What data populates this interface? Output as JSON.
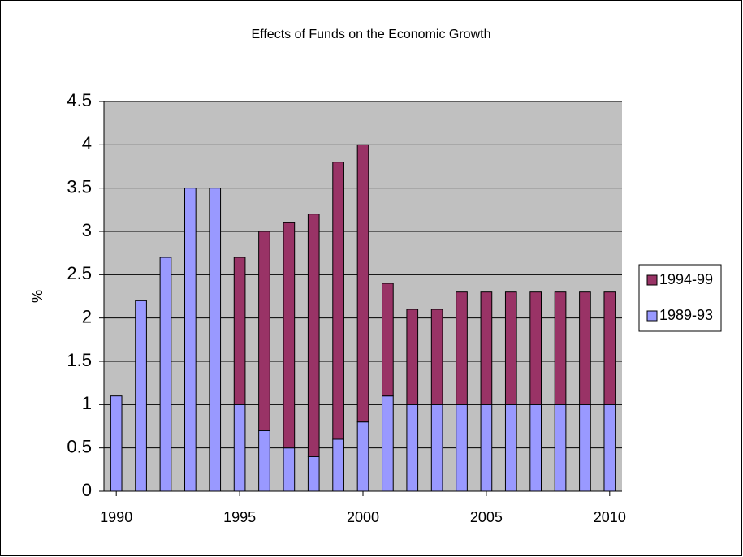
{
  "chart_data": {
    "type": "stacked_bar",
    "title": "Effects of Funds on the Economic Growth",
    "y_label": "%",
    "x": [
      1990,
      1991,
      1992,
      1993,
      1994,
      1995,
      1996,
      1997,
      1998,
      1999,
      2000,
      2001,
      2002,
      2003,
      2004,
      2005,
      2006,
      2007,
      2008,
      2009,
      2010
    ],
    "xlim": [
      1989.5,
      2010.5
    ],
    "xticks": [
      1990,
      1995,
      2000,
      2005,
      2010
    ],
    "ylim": [
      0,
      4.5
    ],
    "yticks": [
      0,
      0.5,
      1,
      1.5,
      2,
      2.5,
      3,
      3.5,
      4,
      4.5
    ],
    "grid": true,
    "legend": "right",
    "series": [
      {
        "name": "1989-93",
        "color": "#9999ff",
        "values": [
          1.1,
          2.2,
          2.7,
          3.5,
          3.5,
          1.0,
          0.7,
          0.5,
          0.4,
          0.6,
          0.8,
          1.1,
          1.0,
          1.0,
          1.0,
          1.0,
          1.0,
          1.0,
          1.0,
          1.0,
          1.0
        ]
      },
      {
        "name": "1994-99",
        "color": "#993366",
        "values": [
          null,
          null,
          null,
          null,
          null,
          1.7,
          2.3,
          2.6,
          2.8,
          3.2,
          3.2,
          1.3,
          1.1,
          1.1,
          1.3,
          1.3,
          1.3,
          1.3,
          1.3,
          1.3,
          1.3
        ]
      }
    ]
  }
}
